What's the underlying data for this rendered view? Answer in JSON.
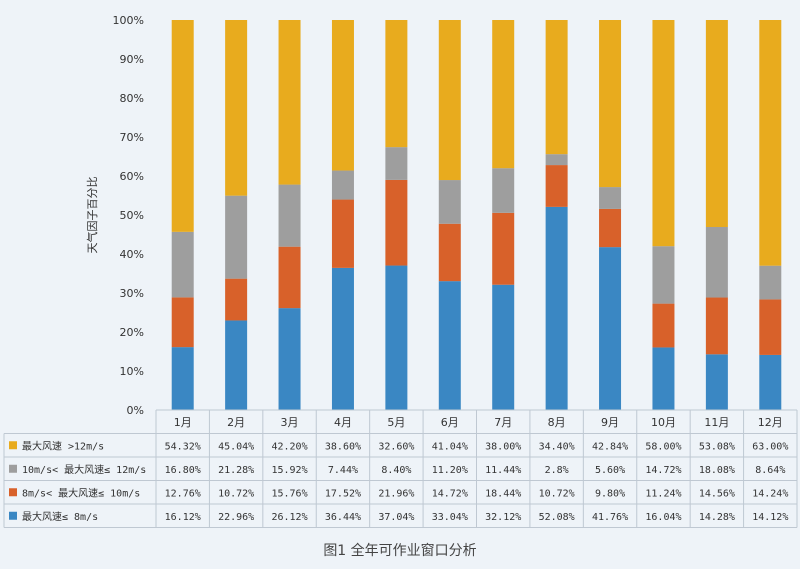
{
  "chart_data": {
    "type": "bar",
    "stacked": "percent",
    "ylabel": "天气因子百分比",
    "caption": "图1 全年可作业窗口分析",
    "y_ticks": [
      "0%",
      "10%",
      "20%",
      "30%",
      "40%",
      "50%",
      "60%",
      "70%",
      "80%",
      "90%",
      "100%"
    ],
    "ylim": [
      0,
      100
    ],
    "grid": false,
    "categories": [
      "1月",
      "2月",
      "3月",
      "4月",
      "5月",
      "6月",
      "7月",
      "8月",
      "9月",
      "10月",
      "11月",
      "12月"
    ],
    "series": [
      {
        "name": "最大风速≤ 8m/s",
        "color": "#3a87c3",
        "values": [
          16.12,
          22.96,
          26.12,
          36.44,
          37.04,
          33.04,
          32.12,
          52.08,
          41.76,
          16.04,
          14.28,
          14.12
        ],
        "labels": [
          "16.12%",
          "22.96%",
          "26.12%",
          "36.44%",
          "37.04%",
          "33.04%",
          "32.12%",
          "52.08%",
          "41.76%",
          "16.04%",
          "14.28%",
          "14.12%"
        ]
      },
      {
        "name": "8m/s< 最大风速≤ 10m/s",
        "color": "#d8612a",
        "values": [
          12.76,
          10.72,
          15.76,
          17.52,
          21.96,
          14.72,
          18.44,
          10.72,
          9.8,
          11.24,
          14.56,
          14.24
        ],
        "labels": [
          "12.76%",
          "10.72%",
          "15.76%",
          "17.52%",
          "21.96%",
          "14.72%",
          "18.44%",
          "10.72%",
          "9.80%",
          "11.24%",
          "14.56%",
          "14.24%"
        ]
      },
      {
        "name": "10m/s< 最大风速≤ 12m/s",
        "color": "#9e9e9e",
        "values": [
          16.8,
          21.28,
          15.92,
          7.44,
          8.4,
          11.2,
          11.44,
          2.8,
          5.6,
          14.72,
          18.08,
          8.64
        ],
        "labels": [
          "16.80%",
          "21.28%",
          "15.92%",
          "7.44%",
          "8.40%",
          "11.20%",
          "11.44%",
          "2.8%",
          "5.60%",
          "14.72%",
          "18.08%",
          "8.64%"
        ]
      },
      {
        "name": "最大风速 >12m/s",
        "color": "#e8ab1e",
        "values": [
          54.32,
          45.04,
          42.2,
          38.6,
          32.6,
          41.04,
          38.0,
          34.4,
          42.84,
          58.0,
          53.08,
          63.0
        ],
        "labels": [
          "54.32%",
          "45.04%",
          "42.20%",
          "38.60%",
          "32.60%",
          "41.04%",
          "38.00%",
          "34.40%",
          "42.84%",
          "58.00%",
          "53.08%",
          "63.00%"
        ]
      }
    ],
    "table_row_order": [
      3,
      2,
      1,
      0
    ]
  }
}
